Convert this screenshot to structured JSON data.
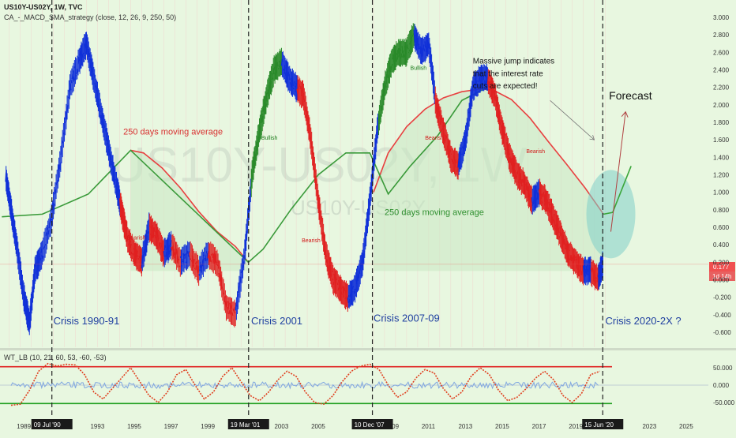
{
  "header": {
    "symbol": "US10Y-US02Y, 1W, TVC",
    "indicator": "CA_-_MACD_SMA_strategy (close, 12, 26, 9, 250, 50)",
    "oscillator": "WT_LB (10, 21, 60, 53, -60, -53)"
  },
  "watermark": {
    "big": "US10Y-US02Y, 1W",
    "small": "US10Y-US02Y"
  },
  "colors": {
    "background": "#e8f7e0",
    "price": "#1030d8",
    "bearish": "#e02020",
    "bullish": "#2a8a2a",
    "ma250": "#e84040",
    "ma_green": "#3a9a3a",
    "forecast": "#b04040",
    "ellipse": "#7fcfc8",
    "crisis_text": "#2040a0"
  },
  "chart_data": [
    {
      "type": "line",
      "title": "US10Y-US02Y, 1W, TVC",
      "subtitle": "CA_-_MACD_SMA_strategy (close, 12, 26, 9, 250, 50)",
      "x_unit": "year",
      "ylim": [
        -0.7,
        3.1
      ],
      "y_ticks": [
        "3.000",
        "2.800",
        "2.600",
        "2.400",
        "2.200",
        "2.000",
        "1.800",
        "1.600",
        "1.400",
        "1.200",
        "1.000",
        "0.800",
        "0.600",
        "0.400",
        "0.200",
        "0.000",
        "-0.200",
        "-0.400",
        "-0.600"
      ],
      "x_ticks": [
        "1989",
        "1993",
        "1995",
        "1997",
        "1999",
        "2003",
        "2005",
        "2009",
        "2011",
        "2013",
        "2015",
        "2017",
        "2019",
        "2023",
        "2025"
      ],
      "x_ticks_year": [
        1989,
        1993,
        1995,
        1997,
        1999,
        2003,
        2005,
        2009,
        2011,
        2013,
        2015,
        2017,
        2019,
        2023,
        2025
      ],
      "xlim": [
        1987.7,
        2026.2
      ],
      "date_flags": [
        {
          "label": "09 Jul '90",
          "year": 1990.52
        },
        {
          "label": "19 Mar '01",
          "year": 2001.21
        },
        {
          "label": "10 Dec '07",
          "year": 2007.94
        },
        {
          "label": "15 Jun '20",
          "year": 2020.46
        }
      ],
      "series": [
        {
          "role": "price",
          "x": [
            1988.0,
            1988.3,
            1988.6,
            1989.0,
            1989.3,
            1989.6,
            1990.0,
            1990.5,
            1991.0,
            1991.5,
            1992.0,
            1992.4,
            1992.8,
            1993.2,
            1993.6,
            1994.0,
            1994.3,
            1994.6,
            1995.0,
            1995.4,
            1995.8,
            1996.2,
            1996.6,
            1997.0,
            1997.5,
            1998.0,
            1998.5,
            1999.0,
            1999.5,
            2000.0,
            2000.5,
            2001.0,
            2001.4,
            2001.8,
            2002.2,
            2002.6,
            2003.0,
            2003.4,
            2003.8,
            2004.2,
            2004.6,
            2005.0,
            2005.4,
            2005.8,
            2006.2,
            2006.6,
            2007.0,
            2007.4,
            2007.8,
            2008.2,
            2008.6,
            2009.0,
            2009.4,
            2009.8,
            2010.2,
            2010.6,
            2011.0,
            2011.4,
            2011.8,
            2012.2,
            2012.6,
            2013.0,
            2013.4,
            2013.8,
            2014.2,
            2014.6,
            2015.0,
            2015.4,
            2015.8,
            2016.2,
            2016.6,
            2017.0,
            2017.4,
            2017.8,
            2018.2,
            2018.6,
            2019.0,
            2019.4,
            2019.8,
            2020.2,
            2020.46
          ],
          "y": [
            1.2,
            0.8,
            0.4,
            -0.2,
            -0.5,
            0.1,
            0.3,
            0.7,
            1.4,
            2.2,
            2.5,
            2.7,
            2.3,
            1.9,
            1.5,
            1.1,
            0.8,
            0.5,
            0.3,
            0.2,
            0.6,
            0.5,
            0.3,
            0.4,
            0.2,
            0.3,
            0.1,
            0.3,
            0.2,
            -0.3,
            -0.4,
            0.3,
            1.2,
            1.7,
            2.1,
            2.4,
            2.5,
            2.3,
            2.2,
            2.1,
            1.6,
            0.9,
            0.3,
            0.0,
            -0.1,
            -0.2,
            -0.1,
            0.2,
            0.9,
            1.7,
            2.2,
            2.5,
            2.6,
            2.6,
            2.8,
            2.6,
            2.7,
            2.0,
            1.7,
            1.4,
            1.3,
            1.6,
            2.2,
            2.3,
            2.3,
            2.1,
            1.7,
            1.4,
            1.2,
            1.1,
            0.9,
            1.0,
            0.9,
            0.7,
            0.5,
            0.3,
            0.2,
            0.1,
            0.1,
            0.0,
            0.177
          ]
        },
        {
          "role": "ma250",
          "name": "250 days moving average",
          "x": [
            1994.8,
            1995.5,
            1996.5,
            1997.5,
            1998.5,
            1999.5,
            2000.5,
            2001.2
          ],
          "y": [
            1.48,
            1.45,
            1.28,
            1.05,
            0.78,
            0.55,
            0.38,
            0.2
          ]
        },
        {
          "role": "ma250",
          "x": [
            2008.0,
            2008.8,
            2009.8,
            2010.8,
            2011.8,
            2012.8,
            2013.8,
            2014.5,
            2015.5,
            2016.5,
            2017.5,
            2018.5,
            2019.5,
            2020.5
          ],
          "y": [
            1.0,
            1.45,
            1.75,
            1.95,
            2.08,
            2.15,
            2.18,
            2.17,
            2.06,
            1.85,
            1.58,
            1.32,
            1.05,
            0.75
          ]
        },
        {
          "role": "ma_green",
          "name": "250 days moving average",
          "x": [
            1987.8,
            1990.0,
            1992.5,
            1994.8,
            2001.2,
            2002.0,
            2003.5,
            2005.0,
            2006.5,
            2007.8,
            2008.8,
            2010.0,
            2011.5,
            2012.8,
            2014.0
          ],
          "y": [
            0.72,
            0.75,
            0.98,
            1.48,
            0.2,
            0.35,
            0.8,
            1.2,
            1.45,
            1.45,
            0.98,
            1.3,
            1.65,
            2.05,
            2.18
          ]
        },
        {
          "role": "forecast",
          "x": [
            2020.5,
            2021.0,
            2022.0
          ],
          "y": [
            0.75,
            0.77,
            1.3
          ]
        }
      ],
      "annotations": [
        {
          "text": "250 days moving average",
          "year": 1994.4,
          "value": 1.66,
          "color": "#d83030"
        },
        {
          "text": "250 days moving average",
          "year": 2008.6,
          "value": 0.74,
          "color": "#2f8f2f"
        },
        {
          "text": "Massive jump indicates",
          "year": 2013.4,
          "value": 2.47,
          "color": "#111111"
        },
        {
          "text": "that the interest rate",
          "year": 2013.4,
          "value": 2.33,
          "color": "#111111"
        },
        {
          "text": "cuts are expected!",
          "year": 2013.4,
          "value": 2.19,
          "color": "#111111"
        },
        {
          "text": "Forecast",
          "year": 2020.8,
          "value": 2.06,
          "color": "#111111"
        },
        {
          "text": "Crisis 1990-91",
          "year": 1990.6,
          "value": -0.51,
          "color": "#2040a0"
        },
        {
          "text": "Crisis 2001",
          "year": 2001.35,
          "value": -0.51,
          "color": "#2040a0"
        },
        {
          "text": "Crisis 2007-09",
          "year": 2008.0,
          "value": -0.48,
          "color": "#2040a0"
        },
        {
          "text": "Crisis 2020-2X ?",
          "year": 2020.6,
          "value": -0.51,
          "color": "#2040a0"
        }
      ],
      "markers": [
        {
          "text": "Bearish",
          "year": 1994.6,
          "value": 0.46
        },
        {
          "text": "Bearish",
          "year": 2004.1,
          "value": 0.43
        },
        {
          "text": "Bearish",
          "year": 2010.8,
          "value": 1.6
        },
        {
          "text": "Bearish",
          "year": 2016.3,
          "value": 1.45
        },
        {
          "text": "Bullish",
          "year": 2001.9,
          "value": 1.6
        },
        {
          "text": "Bullish",
          "year": 2010.0,
          "value": 2.4
        }
      ],
      "last_value": {
        "value": "0.177",
        "countdown": "1d 14h"
      }
    },
    {
      "type": "line",
      "title": "WT_LB (10, 21, 60, 53, -60, -53)",
      "ylim": [
        -75,
        80
      ],
      "y_ticks": [
        "50.000",
        "0.000",
        "-50.000"
      ],
      "levels": {
        "upper": 53,
        "lower": -53
      },
      "series": [
        {
          "role": "wt1",
          "x": [
            1988.3,
            1988.8,
            1989.3,
            1989.8,
            1990.3,
            1990.8,
            1991.3,
            1991.8,
            1992.3,
            1992.8,
            1993.3,
            1993.8,
            1994.3,
            1994.8,
            1995.3,
            1995.8,
            1996.3,
            1996.8,
            1997.3,
            1997.8,
            1998.3,
            1998.8,
            1999.3,
            1999.8,
            2000.3,
            2000.8,
            2001.3,
            2001.8,
            2002.3,
            2002.8,
            2003.3,
            2003.8,
            2004.3,
            2004.8,
            2005.3,
            2005.8,
            2006.3,
            2006.8,
            2007.3,
            2007.8,
            2008.3,
            2008.8,
            2009.3,
            2009.8,
            2010.3,
            2010.8,
            2011.3,
            2011.8,
            2012.3,
            2012.8,
            2013.3,
            2013.8,
            2014.3,
            2014.8,
            2015.3,
            2015.8,
            2016.3,
            2016.8,
            2017.3,
            2017.8,
            2018.3,
            2018.8,
            2019.3,
            2019.8,
            2020.3
          ],
          "y": [
            -58,
            -55,
            -15,
            40,
            62,
            55,
            60,
            58,
            30,
            -20,
            -40,
            -10,
            20,
            50,
            10,
            -30,
            -50,
            -20,
            30,
            45,
            0,
            -40,
            -20,
            25,
            50,
            10,
            -30,
            -45,
            -20,
            15,
            40,
            25,
            -20,
            -50,
            -55,
            -30,
            10,
            40,
            55,
            60,
            45,
            0,
            -35,
            -20,
            20,
            45,
            35,
            -10,
            -40,
            -20,
            25,
            50,
            30,
            -15,
            -45,
            -35,
            -10,
            20,
            40,
            15,
            -30,
            -50,
            -25,
            30,
            40
          ]
        }
      ]
    }
  ]
}
